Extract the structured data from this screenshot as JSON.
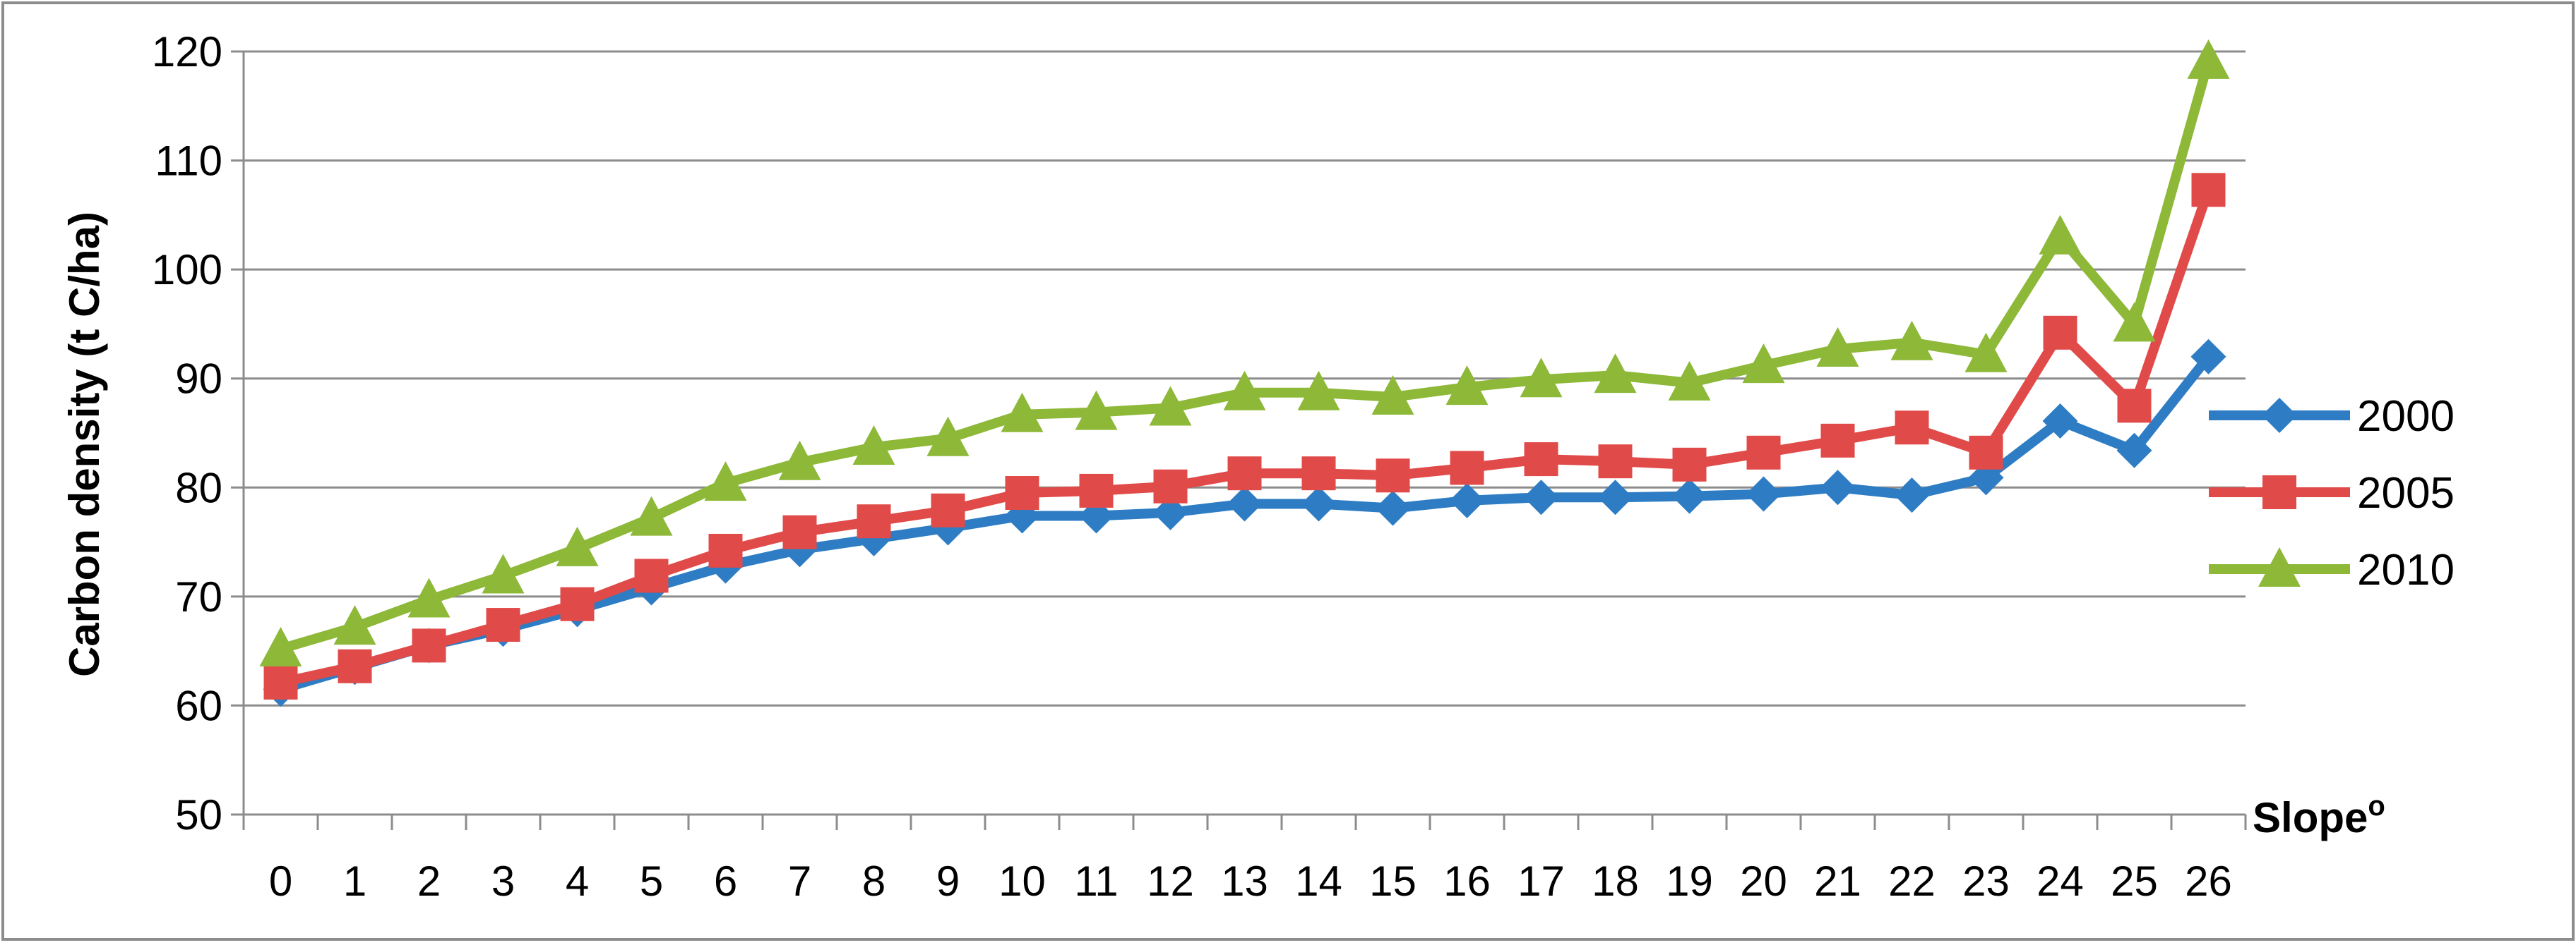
{
  "chart_data": {
    "type": "line",
    "title": "",
    "xlabel": "Slope",
    "xlabel_superscript": "o",
    "ylabel": "Carbon density (t C/ha)",
    "ylim": [
      50,
      120
    ],
    "yticks": [
      50,
      60,
      70,
      80,
      90,
      100,
      110,
      120
    ],
    "grid": "horizontal",
    "legend_position": "right",
    "categories": [
      "0",
      "1",
      "2",
      "3",
      "4",
      "5",
      "6",
      "7",
      "8",
      "9",
      "10",
      "11",
      "12",
      "13",
      "14",
      "15",
      "16",
      "17",
      "18",
      "19",
      "20",
      "21",
      "22",
      "23",
      "24",
      "25",
      "26"
    ],
    "series": [
      {
        "name": "2000",
        "color": "#2E7DC4",
        "marker": "diamond",
        "values": [
          61.5,
          63.5,
          65.5,
          67,
          68.8,
          70.8,
          72.8,
          74.3,
          75.3,
          76.3,
          77.4,
          77.4,
          77.7,
          78.5,
          78.5,
          78.1,
          78.8,
          79.1,
          79.1,
          79.2,
          79.4,
          80.0,
          79.3,
          80.9,
          86.1,
          83.4,
          92.0
        ]
      },
      {
        "name": "2005",
        "color": "#E04B49",
        "marker": "square",
        "values": [
          62.1,
          63.6,
          65.5,
          67.4,
          69.3,
          71.9,
          74.2,
          75.9,
          76.9,
          77.9,
          79.5,
          79.7,
          80.1,
          81.3,
          81.3,
          81.1,
          81.8,
          82.6,
          82.4,
          82.1,
          83.2,
          84.3,
          85.5,
          83.2,
          94.2,
          87.5,
          107.3
        ]
      },
      {
        "name": "2010",
        "color": "#8DB838",
        "marker": "triangle",
        "values": [
          65.2,
          67.2,
          69.7,
          71.9,
          74.4,
          77.2,
          80.4,
          82.3,
          83.7,
          84.5,
          86.7,
          86.9,
          87.3,
          88.7,
          88.7,
          88.3,
          89.2,
          89.9,
          90.3,
          89.6,
          91.2,
          92.7,
          93.3,
          92.2,
          103.0,
          95.0,
          119.1
        ]
      }
    ]
  }
}
